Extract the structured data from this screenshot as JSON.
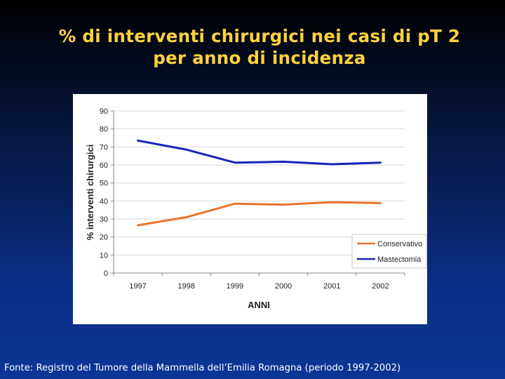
{
  "slide": {
    "title_line1": "% di interventi chirurgici nei casi di pT 2",
    "title_line2": "per anno di incidenza",
    "footer": "Fonte: Registro del Tumore della Mammella dell’Emilia Romagna (periodo 1997-2002)"
  },
  "colors": {
    "title": "#ffd23c",
    "conservativo": "#e8742a",
    "mastectomia": "#1a22b8"
  },
  "chart_data": {
    "type": "line",
    "title": "",
    "xlabel": "ANNI",
    "ylabel": "% interventi chirurgici",
    "categories": [
      "1997",
      "1998",
      "1999",
      "2000",
      "2001",
      "2002"
    ],
    "ylim": [
      0,
      90
    ],
    "yticks": [
      0,
      10,
      20,
      30,
      40,
      50,
      60,
      70,
      80,
      90
    ],
    "grid": true,
    "legend_position": "bottom-right",
    "series": [
      {
        "name": "Conservativo",
        "color": "#e8742a",
        "values": [
          26.5,
          31,
          38.5,
          38,
          39.3,
          38.8
        ]
      },
      {
        "name": "Mastectomia",
        "color": "#1a22b8",
        "values": [
          73.5,
          68.5,
          61.3,
          61.8,
          60.4,
          61.3
        ]
      }
    ]
  }
}
